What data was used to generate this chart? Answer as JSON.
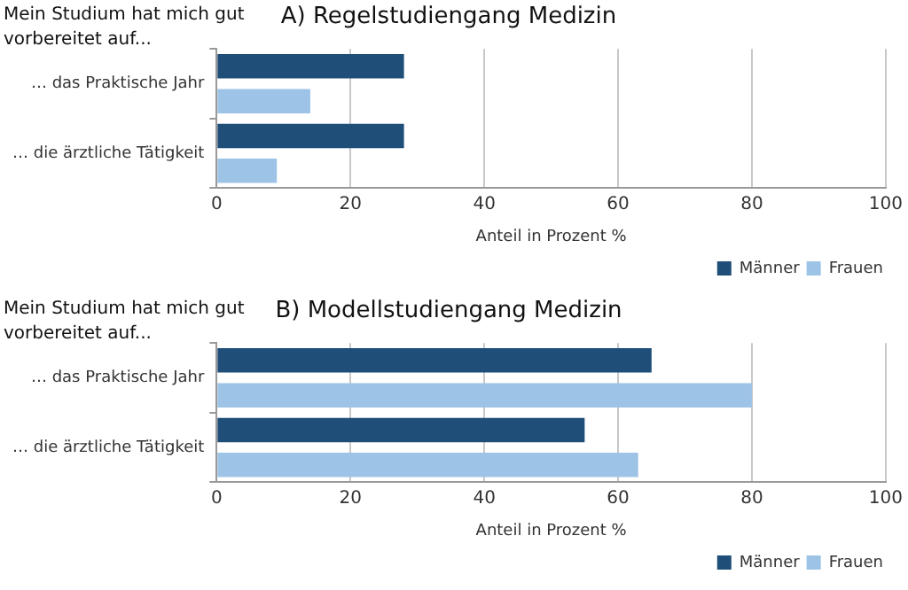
{
  "chart_data": [
    {
      "type": "bar",
      "orientation": "horizontal",
      "title": "A) Regelstudiengang Medizin",
      "annotations": [
        "Mein Studium hat mich gut vorbereitet auf..."
      ],
      "xlabel": "Anteil in Prozent %",
      "categories": [
        "… das Praktische Jahr",
        "… die ärztliche Tätigkeit"
      ],
      "series": [
        {
          "name": "Männer",
          "color": "#1f4e79",
          "values": [
            28,
            28
          ]
        },
        {
          "name": "Frauen",
          "color": "#9dc3e6",
          "values": [
            14,
            9
          ]
        }
      ],
      "xlim": [
        0,
        100
      ],
      "xticks": [
        0,
        20,
        40,
        60,
        80,
        100
      ],
      "grid": "x",
      "legend": "bottom right"
    },
    {
      "type": "bar",
      "orientation": "horizontal",
      "title": "B) Modellstudiengang Medizin",
      "annotations": [
        "Mein Studium hat mich gut vorbereitet auf..."
      ],
      "xlabel": "Anteil in Prozent %",
      "categories": [
        "… das Praktische Jahr",
        "… die ärztliche Tätigkeit"
      ],
      "series": [
        {
          "name": "Männer",
          "color": "#1f4e79",
          "values": [
            65,
            55
          ]
        },
        {
          "name": "Frauen",
          "color": "#9dc3e6",
          "values": [
            80,
            63
          ]
        }
      ],
      "xlim": [
        0,
        100
      ],
      "xticks": [
        0,
        20,
        40,
        60,
        80,
        100
      ],
      "grid": "x",
      "legend": "bottom right"
    }
  ]
}
